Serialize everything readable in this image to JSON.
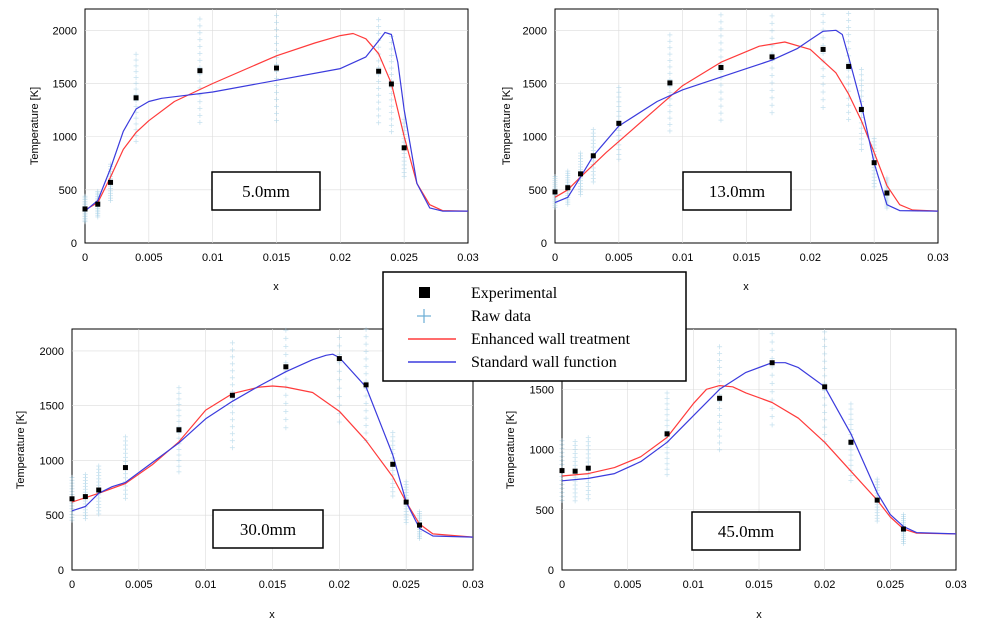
{
  "legend": {
    "entries": [
      {
        "label": "Experimental",
        "marker": "square",
        "color": "#000000"
      },
      {
        "label": "Raw data",
        "marker": "plus",
        "color": "#6aaed6"
      },
      {
        "label": "Enhanced wall treatment",
        "marker": "line",
        "color": "#ff3b3b"
      },
      {
        "label": "Standard wall function",
        "marker": "line",
        "color": "#3b3bdd"
      }
    ]
  },
  "colors": {
    "enhanced": "#ff3b3b",
    "standard": "#3b3bdd",
    "raw": "#9ccbe3",
    "experimental": "#000000"
  },
  "chart_data": [
    {
      "type": "line",
      "panel_label": "5.0mm",
      "xlabel": "x",
      "ylabel": "Temperature [K]",
      "xlim": [
        0,
        0.03
      ],
      "ylim": [
        0,
        2200
      ],
      "x_ticks": [
        "0",
        "0.005",
        "0.01",
        "0.015",
        "0.02",
        "0.025",
        "0.03"
      ],
      "y_ticks": [
        "0",
        "500",
        "1000",
        "1500",
        "2000"
      ],
      "grid": true,
      "series": [
        {
          "name": "Enhanced wall treatment",
          "x": [
            0,
            0.001,
            0.002,
            0.003,
            0.004,
            0.005,
            0.007,
            0.01,
            0.015,
            0.018,
            0.02,
            0.021,
            0.022,
            0.023,
            0.024,
            0.025,
            0.026,
            0.027,
            0.028,
            0.03
          ],
          "values": [
            310,
            380,
            620,
            880,
            1040,
            1150,
            1330,
            1500,
            1760,
            1880,
            1950,
            1970,
            1920,
            1780,
            1500,
            1000,
            560,
            360,
            305,
            300
          ]
        },
        {
          "name": "Standard wall function",
          "x": [
            0,
            0.001,
            0.002,
            0.003,
            0.004,
            0.005,
            0.006,
            0.008,
            0.01,
            0.015,
            0.02,
            0.022,
            0.023,
            0.0235,
            0.024,
            0.0245,
            0.025,
            0.026,
            0.027,
            0.028,
            0.03
          ],
          "values": [
            300,
            400,
            700,
            1050,
            1260,
            1330,
            1360,
            1390,
            1420,
            1530,
            1640,
            1750,
            1900,
            1980,
            1960,
            1700,
            1250,
            560,
            330,
            300,
            300
          ]
        },
        {
          "name": "Experimental",
          "x": [
            0,
            0.001,
            0.002,
            0.004,
            0.009,
            0.015,
            0.023,
            0.024,
            0.025
          ],
          "values": [
            320,
            365,
            570,
            1365,
            1620,
            1645,
            1615,
            1495,
            895
          ]
        }
      ]
    },
    {
      "type": "line",
      "panel_label": "13.0mm",
      "xlabel": "x",
      "ylabel": "Temperature [K]",
      "xlim": [
        0,
        0.03
      ],
      "ylim": [
        0,
        2200
      ],
      "x_ticks": [
        "0",
        "0.005",
        "0.01",
        "0.015",
        "0.02",
        "0.025",
        "0.03"
      ],
      "y_ticks": [
        "0",
        "500",
        "1000",
        "1500",
        "2000"
      ],
      "grid": true,
      "series": [
        {
          "name": "Enhanced wall treatment",
          "x": [
            0,
            0.001,
            0.002,
            0.004,
            0.006,
            0.008,
            0.01,
            0.013,
            0.016,
            0.018,
            0.02,
            0.022,
            0.023,
            0.024,
            0.025,
            0.026,
            0.027,
            0.028,
            0.03
          ],
          "values": [
            430,
            500,
            620,
            850,
            1060,
            1270,
            1480,
            1700,
            1850,
            1890,
            1820,
            1600,
            1400,
            1150,
            850,
            540,
            360,
            310,
            300
          ]
        },
        {
          "name": "Standard wall function",
          "x": [
            0,
            0.001,
            0.002,
            0.003,
            0.005,
            0.008,
            0.01,
            0.013,
            0.015,
            0.017,
            0.019,
            0.02,
            0.021,
            0.022,
            0.0225,
            0.023,
            0.024,
            0.025,
            0.026,
            0.027,
            0.03
          ],
          "values": [
            380,
            430,
            620,
            820,
            1100,
            1330,
            1440,
            1560,
            1640,
            1720,
            1830,
            1910,
            1990,
            2000,
            1960,
            1750,
            1300,
            750,
            360,
            305,
            300
          ]
        },
        {
          "name": "Experimental",
          "x": [
            0,
            0.001,
            0.002,
            0.003,
            0.005,
            0.009,
            0.013,
            0.017,
            0.021,
            0.023,
            0.024,
            0.025,
            0.026
          ],
          "values": [
            480,
            520,
            650,
            820,
            1125,
            1505,
            1650,
            1750,
            1820,
            1660,
            1255,
            755,
            470
          ]
        }
      ]
    },
    {
      "type": "line",
      "panel_label": "30.0mm",
      "xlabel": "x",
      "ylabel": "Temperature [K]",
      "xlim": [
        0,
        0.03
      ],
      "ylim": [
        0,
        2200
      ],
      "x_ticks": [
        "0",
        "0.005",
        "0.01",
        "0.015",
        "0.02",
        "0.025",
        "0.03"
      ],
      "y_ticks": [
        "0",
        "500",
        "1000",
        "1500",
        "2000"
      ],
      "grid": true,
      "series": [
        {
          "name": "Enhanced wall treatment",
          "x": [
            0,
            0.001,
            0.002,
            0.004,
            0.006,
            0.008,
            0.01,
            0.012,
            0.014,
            0.015,
            0.016,
            0.018,
            0.02,
            0.022,
            0.024,
            0.025,
            0.026,
            0.027,
            0.03
          ],
          "values": [
            620,
            660,
            700,
            790,
            960,
            1170,
            1460,
            1610,
            1670,
            1680,
            1670,
            1620,
            1450,
            1180,
            850,
            620,
            420,
            330,
            300
          ]
        },
        {
          "name": "Standard wall function",
          "x": [
            0,
            0.001,
            0.002,
            0.003,
            0.004,
            0.006,
            0.008,
            0.01,
            0.012,
            0.014,
            0.016,
            0.018,
            0.019,
            0.0195,
            0.02,
            0.022,
            0.024,
            0.025,
            0.026,
            0.027,
            0.03
          ],
          "values": [
            540,
            580,
            700,
            760,
            800,
            980,
            1160,
            1380,
            1540,
            1680,
            1810,
            1920,
            1960,
            1970,
            1940,
            1670,
            1050,
            620,
            380,
            310,
            300
          ]
        },
        {
          "name": "Experimental",
          "x": [
            0,
            0.001,
            0.002,
            0.004,
            0.008,
            0.012,
            0.016,
            0.02,
            0.022,
            0.024,
            0.025,
            0.026
          ],
          "values": [
            650,
            670,
            730,
            935,
            1280,
            1595,
            1855,
            1930,
            1690,
            965,
            620,
            410
          ]
        }
      ]
    },
    {
      "type": "line",
      "panel_label": "45.0mm",
      "xlabel": "x",
      "ylabel": "Temperature [K]",
      "xlim": [
        0,
        0.03
      ],
      "ylim": [
        0,
        2000
      ],
      "x_ticks": [
        "0",
        "0.005",
        "0.01",
        "0.015",
        "0.02",
        "0.025",
        "0.03"
      ],
      "y_ticks": [
        "0",
        "500",
        "1000",
        "1500"
      ],
      "grid": true,
      "series": [
        {
          "name": "Enhanced wall treatment",
          "x": [
            0,
            0.002,
            0.004,
            0.006,
            0.008,
            0.01,
            0.011,
            0.012,
            0.013,
            0.014,
            0.016,
            0.018,
            0.02,
            0.022,
            0.024,
            0.025,
            0.026,
            0.027,
            0.03
          ],
          "values": [
            780,
            800,
            850,
            940,
            1100,
            1380,
            1500,
            1530,
            1520,
            1470,
            1390,
            1260,
            1060,
            820,
            580,
            440,
            340,
            305,
            300
          ]
        },
        {
          "name": "Standard wall function",
          "x": [
            0,
            0.002,
            0.004,
            0.006,
            0.008,
            0.01,
            0.012,
            0.014,
            0.016,
            0.017,
            0.018,
            0.02,
            0.022,
            0.024,
            0.025,
            0.026,
            0.027,
            0.03
          ],
          "values": [
            740,
            760,
            800,
            900,
            1060,
            1280,
            1500,
            1640,
            1720,
            1720,
            1680,
            1520,
            1130,
            640,
            460,
            360,
            310,
            300
          ]
        },
        {
          "name": "Experimental",
          "x": [
            0,
            0.001,
            0.002,
            0.008,
            0.012,
            0.016,
            0.02,
            0.022,
            0.024,
            0.026
          ],
          "values": [
            825,
            820,
            845,
            1130,
            1425,
            1720,
            1520,
            1060,
            580,
            340
          ]
        }
      ]
    }
  ]
}
